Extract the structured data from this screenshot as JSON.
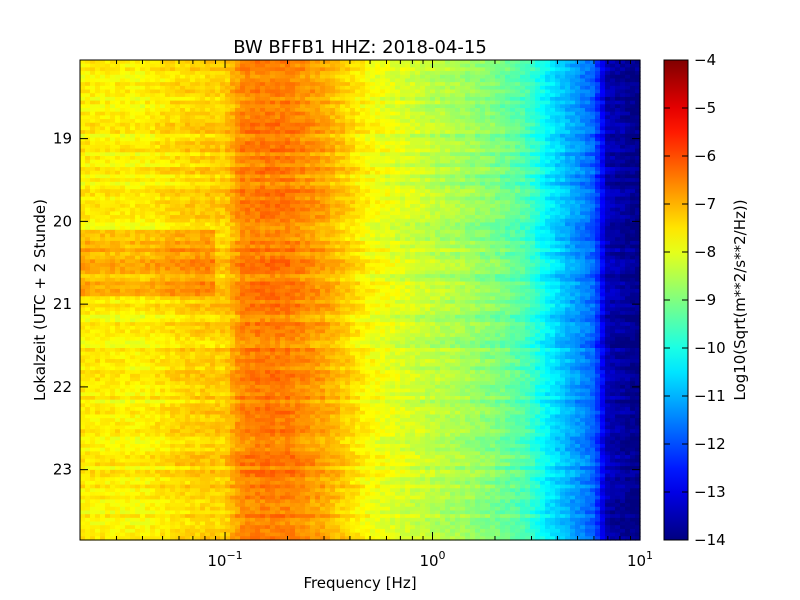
{
  "chart_data": {
    "type": "heatmap",
    "title": "BW BFFB1 HHZ: 2018-04-15",
    "xlabel": "Frequency [Hz]",
    "ylabel": "Lokalzeit (UTC + 2 Stunde)",
    "x_scale": "log",
    "xlim": [
      0.02,
      10
    ],
    "x_ticks": [
      {
        "value": 0.1,
        "base": "10",
        "exp": "−1"
      },
      {
        "value": 1,
        "base": "10",
        "exp": "0"
      },
      {
        "value": 10,
        "base": "10",
        "exp": "1"
      }
    ],
    "ylim": [
      18.05,
      23.85
    ],
    "y_inverted": true,
    "y_ticks": [
      19,
      20,
      21,
      22,
      23
    ],
    "y_tick_labels": [
      "19",
      "20",
      "21",
      "22",
      "23"
    ],
    "colorbar": {
      "label": "Log10(Sqrt(m**2/s**2/Hz))",
      "range": [
        -14,
        -4
      ],
      "ticks": [
        -4,
        -5,
        -6,
        -7,
        -8,
        -9,
        -10,
        -11,
        -12,
        -13,
        -14
      ],
      "tick_labels": [
        "−4",
        "−5",
        "−6",
        "−7",
        "−8",
        "−9",
        "−10",
        "−11",
        "−12",
        "−13",
        "−14"
      ],
      "colormap": "jet"
    },
    "frequency_profile": [
      {
        "freq": 0.02,
        "value": -7.6
      },
      {
        "freq": 0.04,
        "value": -7.7
      },
      {
        "freq": 0.06,
        "value": -7.4
      },
      {
        "freq": 0.08,
        "value": -7.3
      },
      {
        "freq": 0.1,
        "value": -7.3
      },
      {
        "freq": 0.12,
        "value": -6.6
      },
      {
        "freq": 0.15,
        "value": -6.5
      },
      {
        "freq": 0.2,
        "value": -6.5
      },
      {
        "freq": 0.3,
        "value": -6.9
      },
      {
        "freq": 0.4,
        "value": -7.4
      },
      {
        "freq": 0.5,
        "value": -7.8
      },
      {
        "freq": 0.7,
        "value": -8.1
      },
      {
        "freq": 1.0,
        "value": -8.4
      },
      {
        "freq": 1.5,
        "value": -8.7
      },
      {
        "freq": 2.0,
        "value": -9.0
      },
      {
        "freq": 2.8,
        "value": -9.5
      },
      {
        "freq": 3.5,
        "value": -10.3
      },
      {
        "freq": 4.5,
        "value": -11.0
      },
      {
        "freq": 6.0,
        "value": -11.8
      },
      {
        "freq": 7.0,
        "value": -13.5
      },
      {
        "freq": 10.0,
        "value": -14.0
      }
    ],
    "time_features": [
      {
        "from": 20.1,
        "to": 20.9,
        "low_freq_max": 0.09,
        "offset": 0.6,
        "note": "stronger low-frequency energy"
      },
      {
        "from": 19.85,
        "to": 19.95,
        "low_freq_max": 10,
        "offset": 0.3,
        "note": "broadband band"
      }
    ]
  }
}
